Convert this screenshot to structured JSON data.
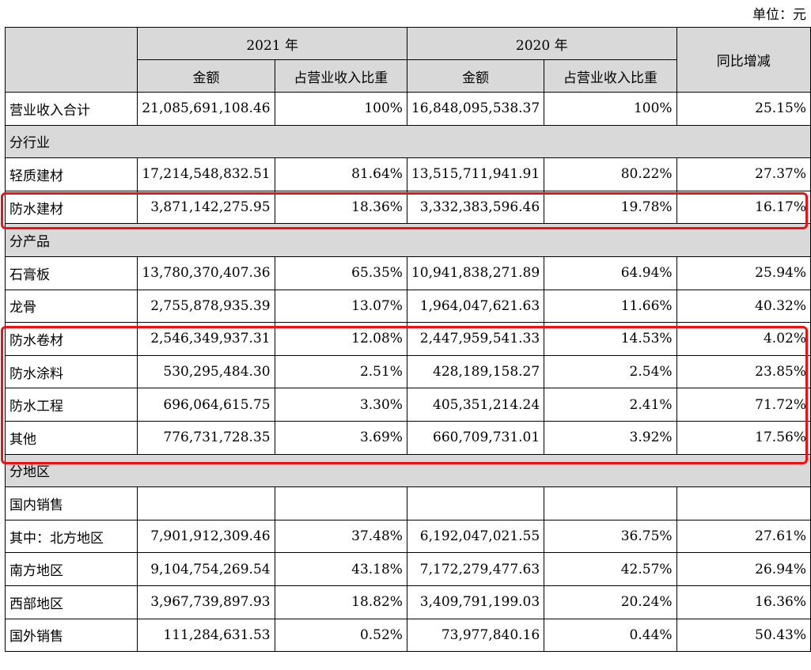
{
  "unit_label": "单位：元",
  "header": {
    "year_2021": "2021 年",
    "year_2020": "2020 年",
    "amount": "金额",
    "share": "占营业收入比重",
    "yoy": "同比增减"
  },
  "rows": [
    {
      "type": "data",
      "label": "营业收入合计",
      "amt2021": "21,085,691,108.46",
      "pct2021": "100%",
      "amt2020": "16,848,095,538.37",
      "pct2020": "100%",
      "yoy": "25.15%"
    },
    {
      "type": "section",
      "label": "分行业"
    },
    {
      "type": "data",
      "label": "轻质建材",
      "amt2021": "17,214,548,832.51",
      "pct2021": "81.64%",
      "amt2020": "13,515,711,941.91",
      "pct2020": "80.22%",
      "yoy": "27.37%"
    },
    {
      "type": "data",
      "label": "防水建材",
      "amt2021": "3,871,142,275.95",
      "pct2021": "18.36%",
      "amt2020": "3,332,383,596.46",
      "pct2020": "19.78%",
      "yoy": "16.17%"
    },
    {
      "type": "section",
      "label": "分产品"
    },
    {
      "type": "data",
      "label": "石膏板",
      "amt2021": "13,780,370,407.36",
      "pct2021": "65.35%",
      "amt2020": "10,941,838,271.89",
      "pct2020": "64.94%",
      "yoy": "25.94%"
    },
    {
      "type": "data",
      "label": "龙骨",
      "amt2021": "2,755,878,935.39",
      "pct2021": "13.07%",
      "amt2020": "1,964,047,621.63",
      "pct2020": "11.66%",
      "yoy": "40.32%"
    },
    {
      "type": "data",
      "label": "防水卷材",
      "amt2021": "2,546,349,937.31",
      "pct2021": "12.08%",
      "amt2020": "2,447,959,541.33",
      "pct2020": "14.53%",
      "yoy": "4.02%"
    },
    {
      "type": "data",
      "label": "防水涂料",
      "amt2021": "530,295,484.30",
      "pct2021": "2.51%",
      "amt2020": "428,189,158.27",
      "pct2020": "2.54%",
      "yoy": "23.85%"
    },
    {
      "type": "data",
      "label": "防水工程",
      "amt2021": "696,064,615.75",
      "pct2021": "3.30%",
      "amt2020": "405,351,214.24",
      "pct2020": "2.41%",
      "yoy": "71.72%"
    },
    {
      "type": "data",
      "label": "其他",
      "amt2021": "776,731,728.35",
      "pct2021": "3.69%",
      "amt2020": "660,709,731.01",
      "pct2020": "3.92%",
      "yoy": "17.56%"
    },
    {
      "type": "section",
      "label": "分地区"
    },
    {
      "type": "data",
      "label": "国内销售",
      "amt2021": "",
      "pct2021": "",
      "amt2020": "",
      "pct2020": "",
      "yoy": ""
    },
    {
      "type": "data",
      "label": "其中：北方地区",
      "amt2021": "7,901,912,309.46",
      "pct2021": "37.48%",
      "amt2020": "6,192,047,021.55",
      "pct2020": "36.75%",
      "yoy": "27.61%"
    },
    {
      "type": "data",
      "label": "南方地区",
      "amt2021": "9,104,754,269.54",
      "pct2021": "43.18%",
      "amt2020": "7,172,279,477.63",
      "pct2020": "42.57%",
      "yoy": "26.94%"
    },
    {
      "type": "data",
      "label": "西部地区",
      "amt2021": "3,967,739,897.93",
      "pct2021": "18.82%",
      "amt2020": "3,409,791,199.03",
      "pct2020": "20.24%",
      "yoy": "16.36%"
    },
    {
      "type": "data",
      "label": "国外销售",
      "amt2021": "111,284,631.53",
      "pct2021": "0.52%",
      "amt2020": "73,977,840.16",
      "pct2020": "0.44%",
      "yoy": "50.43%"
    }
  ],
  "highlight_color": "#ee1111"
}
